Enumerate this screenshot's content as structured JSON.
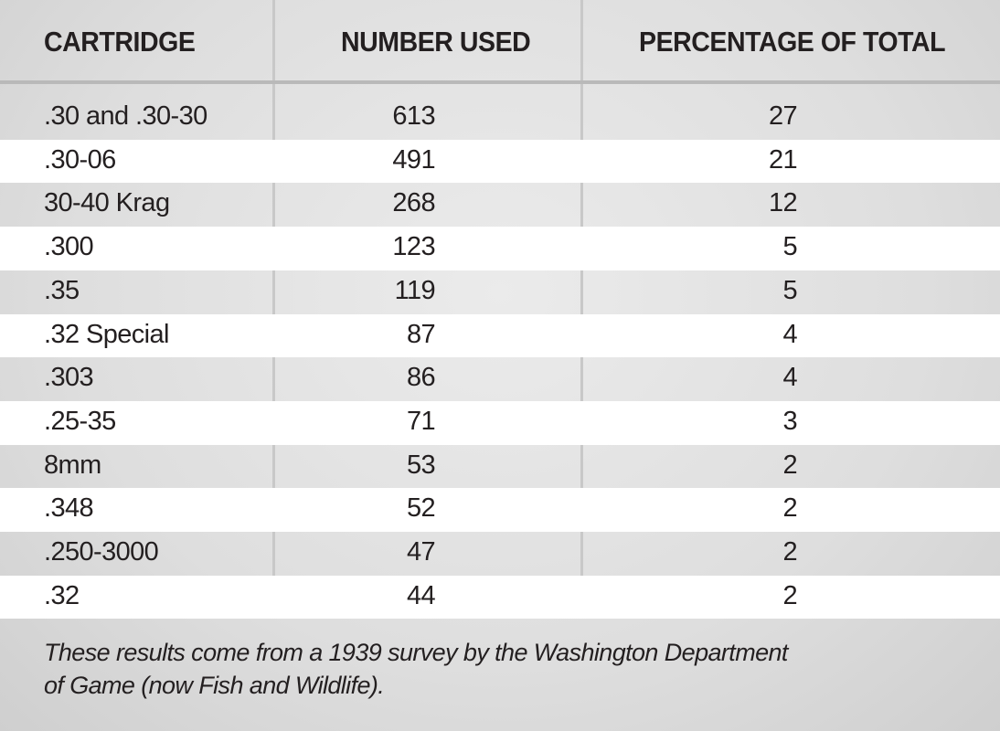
{
  "chart_data": {
    "type": "table",
    "columns": [
      "CARTRIDGE",
      "NUMBER USED",
      "PERCENTAGE OF TOTAL"
    ],
    "rows": [
      [
        ".30 and .30-30",
        "613",
        "27"
      ],
      [
        ".30-06",
        "491",
        "21"
      ],
      [
        "30-40 Krag",
        "268",
        "12"
      ],
      [
        ".300",
        "123",
        "5"
      ],
      [
        ".35",
        "119",
        "5"
      ],
      [
        ".32 Special",
        "87",
        "4"
      ],
      [
        ".303",
        "86",
        "4"
      ],
      [
        ".25-35",
        "71",
        "3"
      ],
      [
        "8mm",
        "53",
        "2"
      ],
      [
        ".348",
        "52",
        "2"
      ],
      [
        ".250-3000",
        "47",
        "2"
      ],
      [
        ".32",
        "44",
        "2"
      ]
    ],
    "footnote": [
      "These results come from a 1939 survey by the Washington Department",
      "of Game (now Fish and Wildlife)."
    ]
  }
}
